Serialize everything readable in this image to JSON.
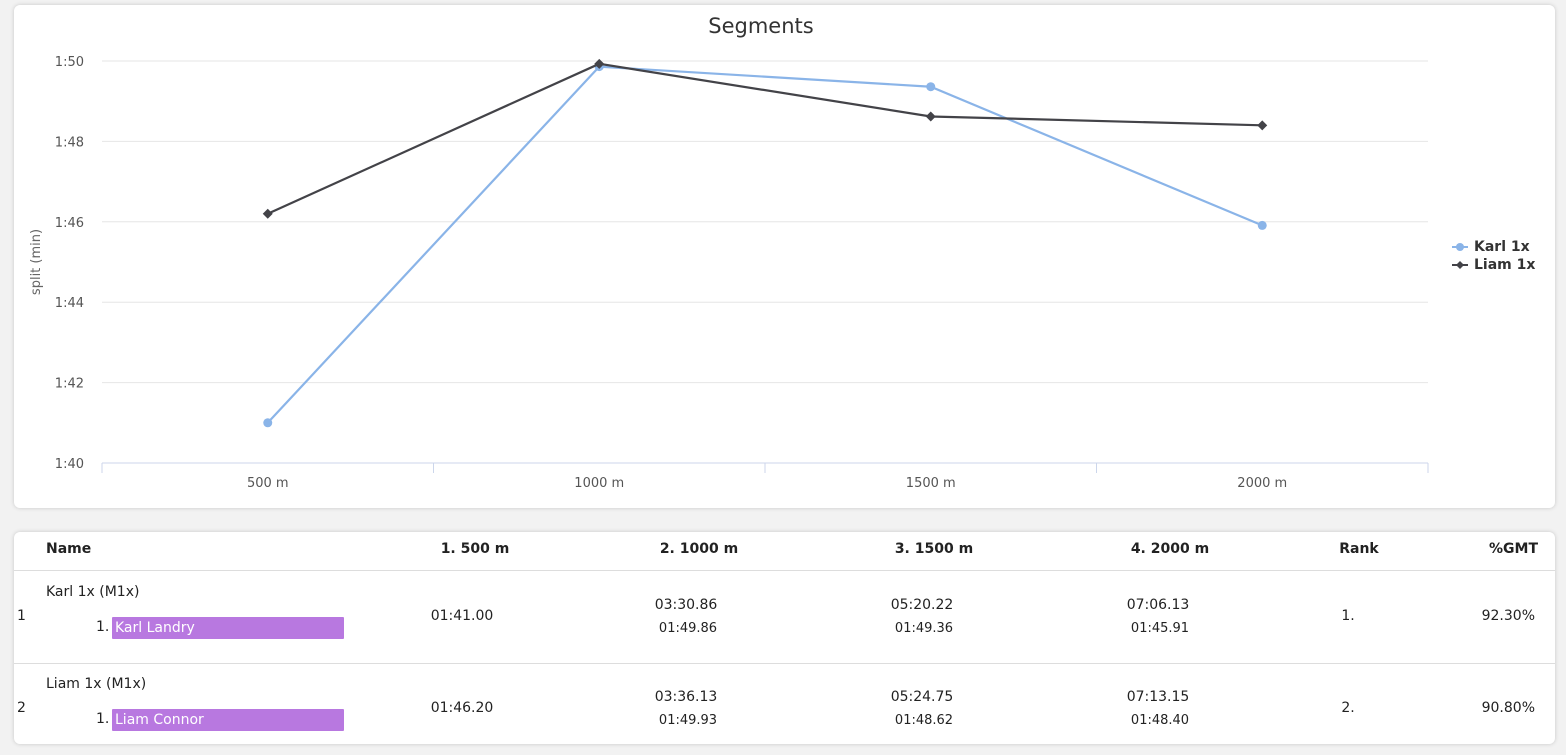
{
  "chart_data": {
    "type": "line",
    "title": "Segments",
    "ylabel": "split (min)",
    "xlabel": "",
    "categories": [
      "500 m",
      "1000 m",
      "1500 m",
      "2000 m"
    ],
    "ylim": [
      100,
      110
    ],
    "yticks": [
      100,
      102,
      104,
      106,
      108,
      110
    ],
    "ytick_labels": [
      "1:40",
      "1:42",
      "1:44",
      "1:46",
      "1:48",
      "1:50"
    ],
    "series": [
      {
        "name": "Karl 1x",
        "color": "#8ab4e8",
        "marker": "circle",
        "values": [
          101.0,
          109.86,
          109.36,
          105.91
        ]
      },
      {
        "name": "Liam 1x",
        "color": "#434348",
        "marker": "diamond",
        "values": [
          106.2,
          109.93,
          108.62,
          108.4
        ]
      }
    ],
    "legend": "right",
    "grid": true
  },
  "table": {
    "headers": {
      "name": "Name",
      "c1": "1. 500 m",
      "c2": "2. 1000 m",
      "c3": "3. 1500 m",
      "c4": "4. 2000 m",
      "rank": "Rank",
      "gmt": "%GMT"
    },
    "rows": [
      {
        "pos": "1",
        "boat": "Karl 1x (M1x)",
        "athlete_num": "1.",
        "athlete": "Karl Landry",
        "c1": "01:41.00",
        "c2": "03:30.86",
        "c2_split": "01:49.86",
        "c3": "05:20.22",
        "c3_split": "01:49.36",
        "c4": "07:06.13",
        "c4_split": "01:45.91",
        "rank": "1.",
        "gmt": "92.30%"
      },
      {
        "pos": "2",
        "boat": "Liam 1x (M1x)",
        "athlete_num": "1.",
        "athlete": "Liam Connor",
        "c1": "01:46.20",
        "c2": "03:36.13",
        "c2_split": "01:49.93",
        "c3": "05:24.75",
        "c3_split": "01:48.62",
        "c4": "07:13.15",
        "c4_split": "01:48.40",
        "rank": "2.",
        "gmt": "90.80%"
      }
    ]
  }
}
